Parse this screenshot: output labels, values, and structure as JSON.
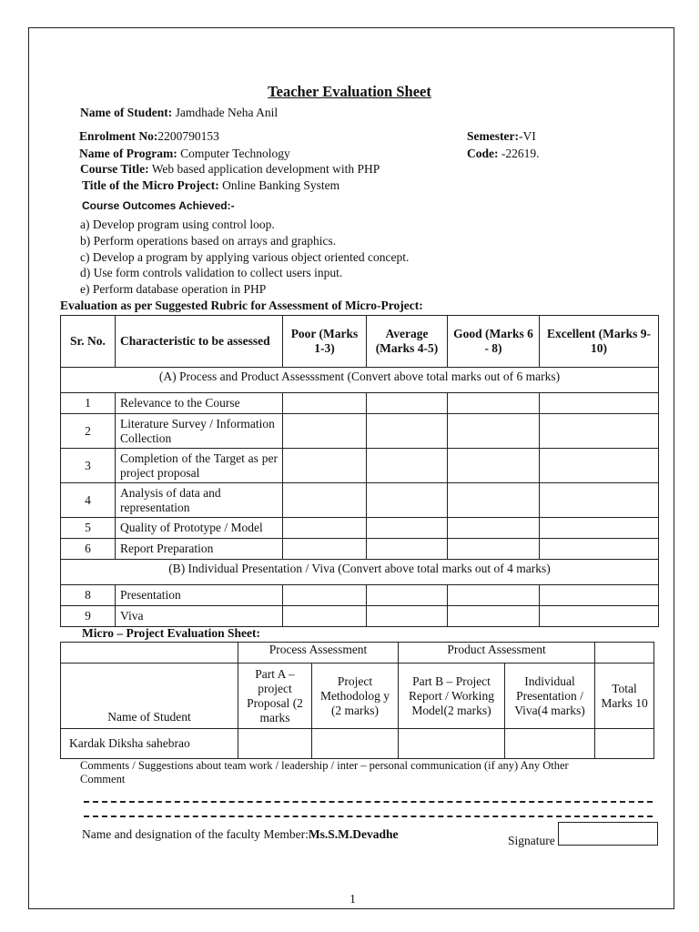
{
  "title": "Teacher Evaluation Sheet",
  "student": {
    "label": "Name of Student:",
    "value": "Jamdhade Neha Anil"
  },
  "enrolment": {
    "label": "Enrolment No:",
    "value": "2200790153"
  },
  "semester": {
    "label": "Semester:",
    "value": "-VI"
  },
  "program": {
    "label": "Name of Program:",
    "value": "Computer Technology"
  },
  "code": {
    "label": "Code:",
    "value": "-22619."
  },
  "course": {
    "label": "Course Title:",
    "value": "Web based application development with PHP"
  },
  "project": {
    "label": "Title of the Micro Project:",
    "value": "Online Banking System"
  },
  "outcomes_heading": "Course Outcomes Achieved:-",
  "outcomes": [
    "a) Develop program using control loop.",
    "b) Perform operations based on arrays and graphics.",
    "c) Develop a program by applying various object oriented concept.",
    "d) Use form controls validation to collect users input.",
    "e) Perform database operation in PHP"
  ],
  "rubric": {
    "heading": "Evaluation as per Suggested Rubric for Assessment of Micro-Project:",
    "headers": [
      "Sr. No.",
      "Characteristic to be assessed",
      "Poor (Marks 1-3)",
      "Average (Marks 4-5)",
      "Good (Marks 6 - 8)",
      "Excellent (Marks 9-10)"
    ],
    "section_a": "(A) Process and Product Assesssment (Convert above total marks out of 6 marks)",
    "rows_a": [
      [
        "1",
        "Relevance to the Course"
      ],
      [
        "2",
        "Literature Survey / Information Collection"
      ],
      [
        "3",
        "Completion of the Target as per project proposal"
      ],
      [
        "4",
        "Analysis of data and representation"
      ],
      [
        "5",
        "Quality of Prototype / Model"
      ],
      [
        "6",
        "Report Preparation"
      ]
    ],
    "section_b": "(B) Individual Presentation / Viva (Convert above total marks out of 4 marks)",
    "rows_b": [
      [
        "8",
        "Presentation"
      ],
      [
        "9",
        "Viva"
      ]
    ]
  },
  "micro": {
    "heading": "Micro – Project Evaluation Sheet:",
    "group_process": "Process Assessment",
    "group_product": "Product Assessment",
    "headers": [
      "Name of Student",
      "Part A – project Proposal (2 marks",
      "Project Methodolog y (2 marks)",
      "Part B – Project Report / Working Model(2 marks)",
      "Individual Presentation / Viva(4 marks)",
      "Total Marks 10"
    ],
    "student": "Kardak Diksha sahebrao"
  },
  "comments": "Comments / Suggestions about team work / leadership / inter – personal communication (if any) Any Other Comment",
  "faculty": {
    "label": "Name and designation of the faculty Member:",
    "value": "Ms.S.M.Devadhe"
  },
  "signature_label": "Signature",
  "page_number": "1"
}
